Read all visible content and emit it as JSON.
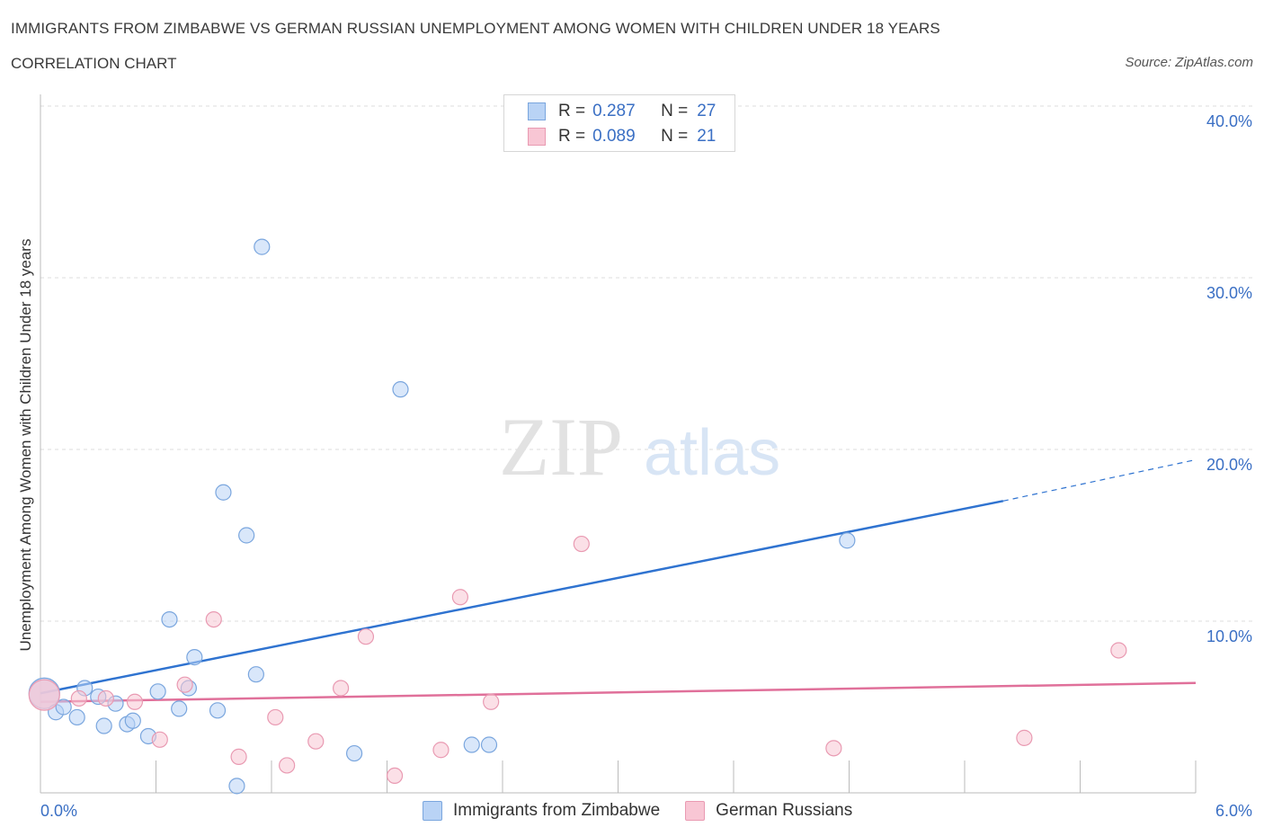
{
  "header": {
    "title": "IMMIGRANTS FROM ZIMBABWE VS GERMAN RUSSIAN UNEMPLOYMENT AMONG WOMEN WITH CHILDREN UNDER 18 YEARS",
    "subtitle": "CORRELATION CHART",
    "source": "Source: ZipAtlas.com"
  },
  "watermark": {
    "zip": "ZIP",
    "atlas": "atlas"
  },
  "legend_top": {
    "rows": [
      {
        "r_label": "R =",
        "r_value": "0.287",
        "n_label": "N =",
        "n_value": "27"
      },
      {
        "r_label": "R =",
        "r_value": "0.089",
        "n_label": "N =",
        "n_value": "21"
      }
    ]
  },
  "colors": {
    "series1_fill": "#b9d3f5",
    "series1_stroke": "#7aa6de",
    "series1_line": "#2f73d0",
    "series2_fill": "#f8c6d4",
    "series2_stroke": "#e99ab2",
    "series2_line": "#e0709a",
    "grid": "#dcdcdc",
    "tick_text": "#3a6fc4"
  },
  "chart_data": {
    "type": "scatter",
    "title": "IMMIGRANTS FROM ZIMBABWE VS GERMAN RUSSIAN UNEMPLOYMENT AMONG WOMEN WITH CHILDREN UNDER 18 YEARS",
    "xlabel": "",
    "ylabel": "Unemployment Among Women with Children Under 18 years",
    "xlim": [
      0,
      6
    ],
    "ylim": [
      0,
      40
    ],
    "x_tick_labels": [
      "0.0%",
      "6.0%"
    ],
    "y_ticks": [
      10,
      20,
      30,
      40
    ],
    "y_tick_labels": [
      "10.0%",
      "20.0%",
      "30.0%",
      "40.0%"
    ],
    "grid": true,
    "legend_position": "bottom",
    "series": [
      {
        "name": "Immigrants from Zimbabwe",
        "R": 0.287,
        "N": 27,
        "points": [
          [
            0.02,
            5.8
          ],
          [
            0.08,
            4.7
          ],
          [
            0.12,
            5.0
          ],
          [
            0.19,
            4.4
          ],
          [
            0.23,
            6.1
          ],
          [
            0.3,
            5.6
          ],
          [
            0.33,
            3.9
          ],
          [
            0.39,
            5.2
          ],
          [
            0.45,
            4.0
          ],
          [
            0.48,
            4.2
          ],
          [
            0.56,
            3.3
          ],
          [
            0.61,
            5.9
          ],
          [
            0.67,
            10.1
          ],
          [
            0.72,
            4.9
          ],
          [
            0.77,
            6.1
          ],
          [
            0.8,
            7.9
          ],
          [
            0.92,
            4.8
          ],
          [
            0.95,
            17.5
          ],
          [
            1.02,
            0.4
          ],
          [
            1.07,
            15.0
          ],
          [
            1.12,
            6.9
          ],
          [
            1.15,
            31.8
          ],
          [
            1.63,
            2.3
          ],
          [
            1.87,
            23.5
          ],
          [
            2.24,
            2.8
          ],
          [
            2.33,
            2.8
          ],
          [
            4.19,
            14.7
          ]
        ],
        "trend": {
          "x0": 0,
          "y0": 5.8,
          "x1": 5.0,
          "y1": 17.0,
          "dash_to_x": 6.0,
          "dash_to_y": 19.4
        }
      },
      {
        "name": "German Russians",
        "R": 0.089,
        "N": 21,
        "points": [
          [
            0.02,
            5.7
          ],
          [
            0.2,
            5.5
          ],
          [
            0.34,
            5.5
          ],
          [
            0.49,
            5.3
          ],
          [
            0.62,
            3.1
          ],
          [
            0.75,
            6.3
          ],
          [
            0.9,
            10.1
          ],
          [
            1.03,
            2.1
          ],
          [
            1.22,
            4.4
          ],
          [
            1.28,
            1.6
          ],
          [
            1.43,
            3.0
          ],
          [
            1.56,
            6.1
          ],
          [
            1.69,
            9.1
          ],
          [
            1.84,
            1.0
          ],
          [
            2.08,
            2.5
          ],
          [
            2.18,
            11.4
          ],
          [
            2.34,
            5.3
          ],
          [
            2.81,
            14.5
          ],
          [
            4.12,
            2.6
          ],
          [
            5.11,
            3.2
          ],
          [
            5.6,
            8.3
          ]
        ],
        "trend": {
          "x0": 0,
          "y0": 5.3,
          "x1": 6.0,
          "y1": 6.4
        }
      }
    ]
  }
}
